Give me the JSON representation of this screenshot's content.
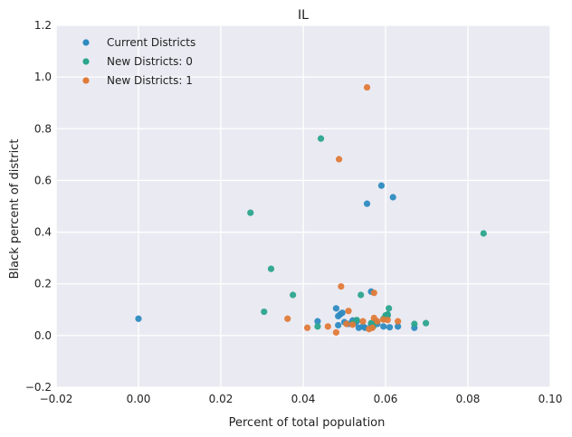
{
  "chart_data": {
    "type": "scatter",
    "title": "IL",
    "xlabel": "Percent of total population",
    "ylabel": "Black percent of district",
    "xlim": [
      -0.02,
      0.1
    ],
    "ylim": [
      -0.2,
      1.2
    ],
    "xticks": [
      -0.02,
      0.0,
      0.02,
      0.04,
      0.06,
      0.08,
      0.1
    ],
    "xtick_labels": [
      "−0.02",
      "0.00",
      "0.02",
      "0.04",
      "0.06",
      "0.08",
      "0.10"
    ],
    "yticks": [
      -0.2,
      0.0,
      0.2,
      0.4,
      0.6,
      0.8,
      1.0,
      1.2
    ],
    "ytick_labels": [
      "−0.2",
      "0.0",
      "0.2",
      "0.4",
      "0.6",
      "0.8",
      "1.0",
      "1.2"
    ],
    "grid": true,
    "legend_position": "top-left",
    "background": "#eaeaf2",
    "series": [
      {
        "name": "Current Districts",
        "color": "#2e8bc0",
        "points": [
          [
            0.0,
            0.065
          ],
          [
            0.0435,
            0.055
          ],
          [
            0.048,
            0.105
          ],
          [
            0.0485,
            0.075
          ],
          [
            0.049,
            0.082
          ],
          [
            0.0495,
            0.088
          ],
          [
            0.05,
            0.052
          ],
          [
            0.051,
            0.045
          ],
          [
            0.052,
            0.058
          ],
          [
            0.0525,
            0.048
          ],
          [
            0.053,
            0.055
          ],
          [
            0.0535,
            0.03
          ],
          [
            0.055,
            0.03
          ],
          [
            0.0555,
            0.51
          ],
          [
            0.0565,
            0.17
          ],
          [
            0.0565,
            0.04
          ],
          [
            0.057,
            0.05
          ],
          [
            0.058,
            0.045
          ],
          [
            0.059,
            0.58
          ],
          [
            0.0595,
            0.035
          ],
          [
            0.06,
            0.072
          ],
          [
            0.0605,
            0.078
          ],
          [
            0.061,
            0.032
          ],
          [
            0.0618,
            0.535
          ],
          [
            0.063,
            0.035
          ],
          [
            0.067,
            0.03
          ],
          [
            0.0485,
            0.04
          ],
          [
            0.0545,
            0.035
          ]
        ]
      },
      {
        "name": "New Districts: 0",
        "color": "#2ca58d",
        "points": [
          [
            0.0272,
            0.475
          ],
          [
            0.0305,
            0.092
          ],
          [
            0.0322,
            0.258
          ],
          [
            0.0375,
            0.157
          ],
          [
            0.0435,
            0.035
          ],
          [
            0.0443,
            0.762
          ],
          [
            0.0522,
            0.05
          ],
          [
            0.053,
            0.06
          ],
          [
            0.054,
            0.157
          ],
          [
            0.0565,
            0.048
          ],
          [
            0.057,
            0.035
          ],
          [
            0.0575,
            0.055
          ],
          [
            0.0595,
            0.065
          ],
          [
            0.06,
            0.078
          ],
          [
            0.0608,
            0.105
          ],
          [
            0.067,
            0.045
          ],
          [
            0.0698,
            0.048
          ],
          [
            0.0838,
            0.395
          ],
          [
            0.0605,
            0.082
          ]
        ]
      },
      {
        "name": "New Districts: 1",
        "color": "#e07b39",
        "points": [
          [
            0.0362,
            0.065
          ],
          [
            0.041,
            0.03
          ],
          [
            0.046,
            0.035
          ],
          [
            0.048,
            0.012
          ],
          [
            0.0487,
            0.682
          ],
          [
            0.0492,
            0.19
          ],
          [
            0.0505,
            0.045
          ],
          [
            0.051,
            0.095
          ],
          [
            0.052,
            0.042
          ],
          [
            0.0545,
            0.055
          ],
          [
            0.0555,
            0.96
          ],
          [
            0.056,
            0.025
          ],
          [
            0.0568,
            0.03
          ],
          [
            0.0572,
            0.068
          ],
          [
            0.0572,
            0.165
          ],
          [
            0.058,
            0.055
          ],
          [
            0.0595,
            0.062
          ],
          [
            0.0605,
            0.06
          ],
          [
            0.063,
            0.055
          ]
        ]
      }
    ]
  }
}
